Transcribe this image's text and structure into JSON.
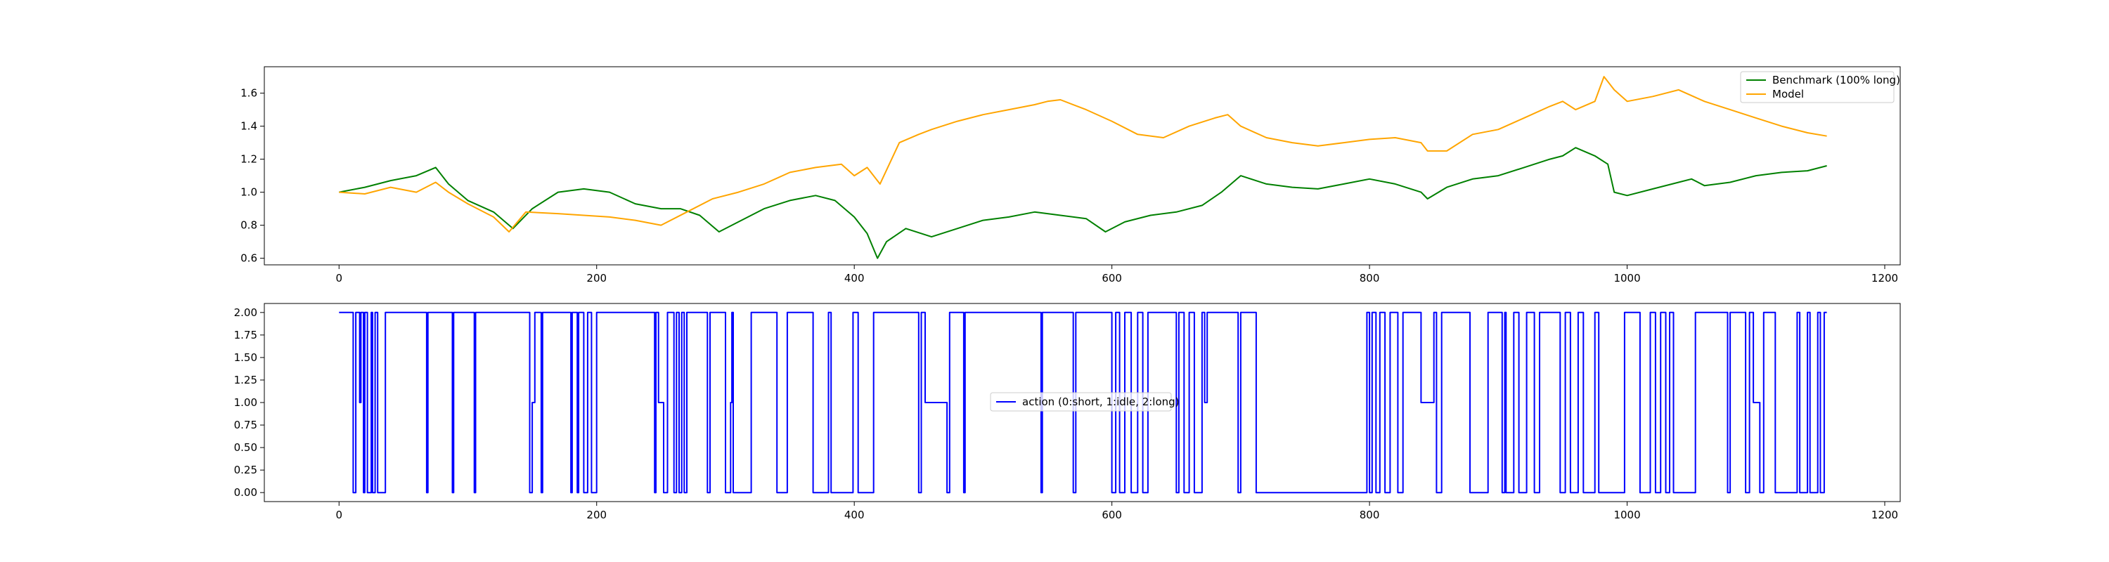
{
  "chart_data": [
    {
      "type": "line",
      "title": "",
      "xlabel": "",
      "ylabel": "",
      "xlim": [
        -58,
        1212
      ],
      "ylim": [
        0.56,
        1.76
      ],
      "x_ticks": [
        "0",
        "200",
        "400",
        "600",
        "800",
        "1000",
        "1200"
      ],
      "y_ticks": [
        "0.6",
        "0.8",
        "1.0",
        "1.2",
        "1.4",
        "1.6"
      ],
      "legend_position": "top-right",
      "grid": false,
      "series": [
        {
          "name": "Benchmark (100% long)",
          "color": "#008000",
          "x": [
            0,
            20,
            40,
            60,
            75,
            85,
            100,
            120,
            135,
            150,
            170,
            190,
            210,
            230,
            250,
            265,
            280,
            295,
            310,
            330,
            350,
            370,
            385,
            400,
            410,
            418,
            425,
            440,
            460,
            480,
            500,
            520,
            540,
            560,
            580,
            595,
            610,
            630,
            650,
            670,
            685,
            700,
            720,
            740,
            760,
            780,
            800,
            820,
            840,
            845,
            860,
            880,
            900,
            920,
            940,
            950,
            960,
            975,
            985,
            990,
            1000,
            1020,
            1040,
            1050,
            1060,
            1080,
            1100,
            1120,
            1140,
            1155
          ],
          "values": [
            1.0,
            1.03,
            1.07,
            1.1,
            1.15,
            1.05,
            0.95,
            0.88,
            0.78,
            0.9,
            1.0,
            1.02,
            1.0,
            0.93,
            0.9,
            0.9,
            0.86,
            0.76,
            0.82,
            0.9,
            0.95,
            0.98,
            0.95,
            0.85,
            0.75,
            0.6,
            0.7,
            0.78,
            0.73,
            0.78,
            0.83,
            0.85,
            0.88,
            0.86,
            0.84,
            0.76,
            0.82,
            0.86,
            0.88,
            0.92,
            1.0,
            1.1,
            1.05,
            1.03,
            1.02,
            1.05,
            1.08,
            1.05,
            1.0,
            0.96,
            1.03,
            1.08,
            1.1,
            1.15,
            1.2,
            1.22,
            1.27,
            1.22,
            1.17,
            1.0,
            0.98,
            1.02,
            1.06,
            1.08,
            1.04,
            1.06,
            1.1,
            1.12,
            1.13,
            1.16
          ]
        },
        {
          "name": "Model",
          "color": "#FFA500",
          "x": [
            0,
            20,
            40,
            60,
            75,
            85,
            100,
            120,
            132,
            145,
            170,
            190,
            210,
            230,
            250,
            270,
            290,
            310,
            330,
            350,
            370,
            390,
            400,
            410,
            420,
            435,
            450,
            460,
            480,
            500,
            520,
            540,
            550,
            560,
            580,
            600,
            620,
            640,
            660,
            680,
            690,
            700,
            720,
            740,
            760,
            780,
            800,
            820,
            840,
            845,
            860,
            880,
            900,
            920,
            940,
            950,
            960,
            975,
            982,
            990,
            1000,
            1020,
            1040,
            1060,
            1080,
            1100,
            1120,
            1140,
            1155
          ],
          "values": [
            1.0,
            0.99,
            1.03,
            1.0,
            1.06,
            1.0,
            0.93,
            0.85,
            0.76,
            0.88,
            0.87,
            0.86,
            0.85,
            0.83,
            0.8,
            0.88,
            0.96,
            1.0,
            1.05,
            1.12,
            1.15,
            1.17,
            1.1,
            1.15,
            1.05,
            1.3,
            1.35,
            1.38,
            1.43,
            1.47,
            1.5,
            1.53,
            1.55,
            1.56,
            1.5,
            1.43,
            1.35,
            1.33,
            1.4,
            1.45,
            1.47,
            1.4,
            1.33,
            1.3,
            1.28,
            1.3,
            1.32,
            1.33,
            1.3,
            1.25,
            1.25,
            1.35,
            1.38,
            1.45,
            1.52,
            1.55,
            1.5,
            1.55,
            1.7,
            1.62,
            1.55,
            1.58,
            1.62,
            1.55,
            1.5,
            1.45,
            1.4,
            1.36,
            1.34
          ]
        }
      ]
    },
    {
      "type": "line",
      "title": "",
      "xlabel": "",
      "ylabel": "",
      "xlim": [
        -58,
        1212
      ],
      "ylim": [
        -0.1,
        2.1
      ],
      "x_ticks": [
        "0",
        "200",
        "400",
        "600",
        "800",
        "1000",
        "1200"
      ],
      "y_ticks": [
        "0.00",
        "0.25",
        "0.50",
        "0.75",
        "1.00",
        "1.25",
        "1.50",
        "1.75",
        "2.00"
      ],
      "legend_position": "center",
      "grid": false,
      "series": [
        {
          "name": "action (0:short, 1:idle, 2:long)",
          "color": "#0000FF",
          "x": [
            0,
            11,
            13,
            16,
            17,
            19,
            20,
            22,
            25,
            26,
            28,
            30,
            36,
            68,
            69,
            70,
            88,
            89,
            92,
            105,
            106,
            107,
            148,
            150,
            152,
            157,
            158,
            163,
            180,
            181,
            185,
            186,
            190,
            193,
            196,
            200,
            203,
            245,
            246,
            248,
            252,
            255,
            260,
            262,
            264,
            266,
            268,
            270,
            273,
            286,
            288,
            290,
            300,
            304,
            305,
            306,
            320,
            325,
            340,
            348,
            368,
            380,
            382,
            399,
            403,
            415,
            420,
            450,
            452,
            455,
            472,
            474,
            476,
            485,
            486,
            545,
            546,
            548,
            570,
            572,
            586,
            600,
            603,
            606,
            610,
            615,
            620,
            624,
            628,
            633,
            650,
            652,
            656,
            660,
            664,
            670,
            672,
            674,
            698,
            700,
            711,
            712,
            798,
            800,
            802,
            805,
            808,
            812,
            816,
            822,
            826,
            838,
            840,
            850,
            852,
            856,
            876,
            878,
            892,
            903,
            905,
            906,
            912,
            916,
            922,
            928,
            932,
            945,
            948,
            952,
            956,
            962,
            966,
            975,
            978,
            998,
            1000,
            1010,
            1018,
            1022,
            1026,
            1030,
            1033,
            1036,
            1053,
            1055,
            1078,
            1080,
            1090,
            1092,
            1095,
            1098,
            1103,
            1106,
            1112,
            1115,
            1132,
            1134,
            1140,
            1142,
            1148,
            1150,
            1153,
            1155
          ],
          "values": [
            2,
            0,
            2,
            1,
            2,
            0,
            2,
            0,
            2,
            0,
            2,
            0,
            2,
            0,
            2,
            2,
            0,
            2,
            2,
            0,
            2,
            2,
            0,
            1,
            2,
            0,
            2,
            2,
            0,
            2,
            0,
            2,
            0,
            2,
            0,
            2,
            2,
            0,
            2,
            1,
            0,
            2,
            0,
            2,
            0,
            2,
            0,
            2,
            2,
            0,
            2,
            2,
            0,
            1,
            2,
            0,
            2,
            2,
            0,
            2,
            0,
            2,
            0,
            2,
            0,
            2,
            2,
            0,
            2,
            1,
            0,
            2,
            2,
            0,
            2,
            0,
            2,
            2,
            0,
            2,
            2,
            0,
            2,
            0,
            2,
            0,
            2,
            0,
            2,
            2,
            0,
            2,
            0,
            2,
            0,
            2,
            1,
            2,
            0,
            2,
            2,
            0,
            2,
            0,
            2,
            0,
            2,
            0,
            2,
            0,
            2,
            2,
            1,
            2,
            0,
            2,
            2,
            0,
            2,
            0,
            2,
            0,
            2,
            0,
            2,
            0,
            2,
            2,
            0,
            2,
            0,
            2,
            0,
            2,
            0,
            2,
            2,
            0,
            2,
            0,
            2,
            0,
            2,
            0,
            2,
            2,
            0,
            2,
            2,
            0,
            2,
            1,
            0,
            2,
            2,
            0,
            2,
            0,
            2,
            0,
            2,
            0,
            2,
            2
          ]
        }
      ]
    }
  ]
}
